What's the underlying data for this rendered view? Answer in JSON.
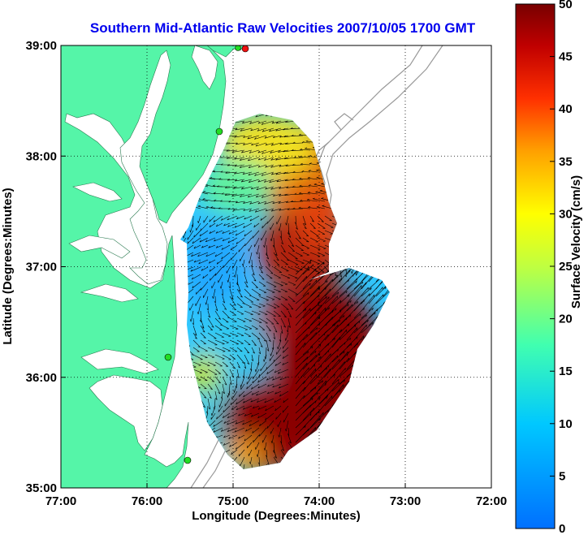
{
  "title": "Southern Mid-Atlantic Raw Velocities 2007/10/05 1700 GMT",
  "x_axis": {
    "label": "Longitude (Degrees:Minutes)",
    "ticks": [
      "77:00",
      "76:00",
      "75:00",
      "74:00",
      "73:00",
      "72:00"
    ],
    "values": [
      -77,
      -76,
      -75,
      -74,
      -73,
      -72
    ]
  },
  "y_axis": {
    "label": "Latitude (Degrees:Minutes)",
    "ticks": [
      "39:00",
      "38:00",
      "37:00",
      "36:00",
      "35:00"
    ],
    "values": [
      39,
      38,
      37,
      36,
      35
    ]
  },
  "colorbar": {
    "label": "Surface Velocity (cm/s)",
    "ticks": [
      "50",
      "45",
      "40",
      "35",
      "30",
      "25",
      "20",
      "15",
      "10",
      "5",
      "0"
    ],
    "min": 0,
    "max": 50
  },
  "colors": {
    "land": "#55f5a8",
    "water": "#ffffff",
    "title": "#0000ee",
    "station_green": "#22dd22",
    "station_red": "#ee1111",
    "bathymetry": "#999999"
  },
  "chart_data": {
    "type": "heatmap",
    "title": "Southern Mid-Atlantic Raw Velocities 2007/10/05 1700 GMT",
    "xlabel": "Longitude (Degrees:Minutes)",
    "ylabel": "Latitude (Degrees:Minutes)",
    "colorbar_label": "Surface Velocity (cm/s)",
    "xlim": [
      -77,
      -72
    ],
    "ylim": [
      35,
      39
    ],
    "clim": [
      0,
      50
    ],
    "grid": true,
    "colormap": "jet",
    "field_regions": [
      {
        "region": "northeast offshore",
        "speed_cm_s": 38
      },
      {
        "region": "north near coast",
        "speed_cm_s": 22
      },
      {
        "region": "central nearshore",
        "speed_cm_s": 10
      },
      {
        "region": "southeast offshore",
        "speed_cm_s": 50
      },
      {
        "region": "southwest nearshore",
        "speed_cm_s": 12
      }
    ],
    "stations": [
      {
        "lon": -74.85,
        "lat": 39.0,
        "color": "red"
      },
      {
        "lon": -74.9,
        "lat": 39.0,
        "color": "green"
      },
      {
        "lon": -75.15,
        "lat": 38.22,
        "color": "green"
      },
      {
        "lon": -75.67,
        "lat": 36.18,
        "color": "green"
      },
      {
        "lon": -75.5,
        "lat": 35.25,
        "color": "green"
      }
    ]
  }
}
